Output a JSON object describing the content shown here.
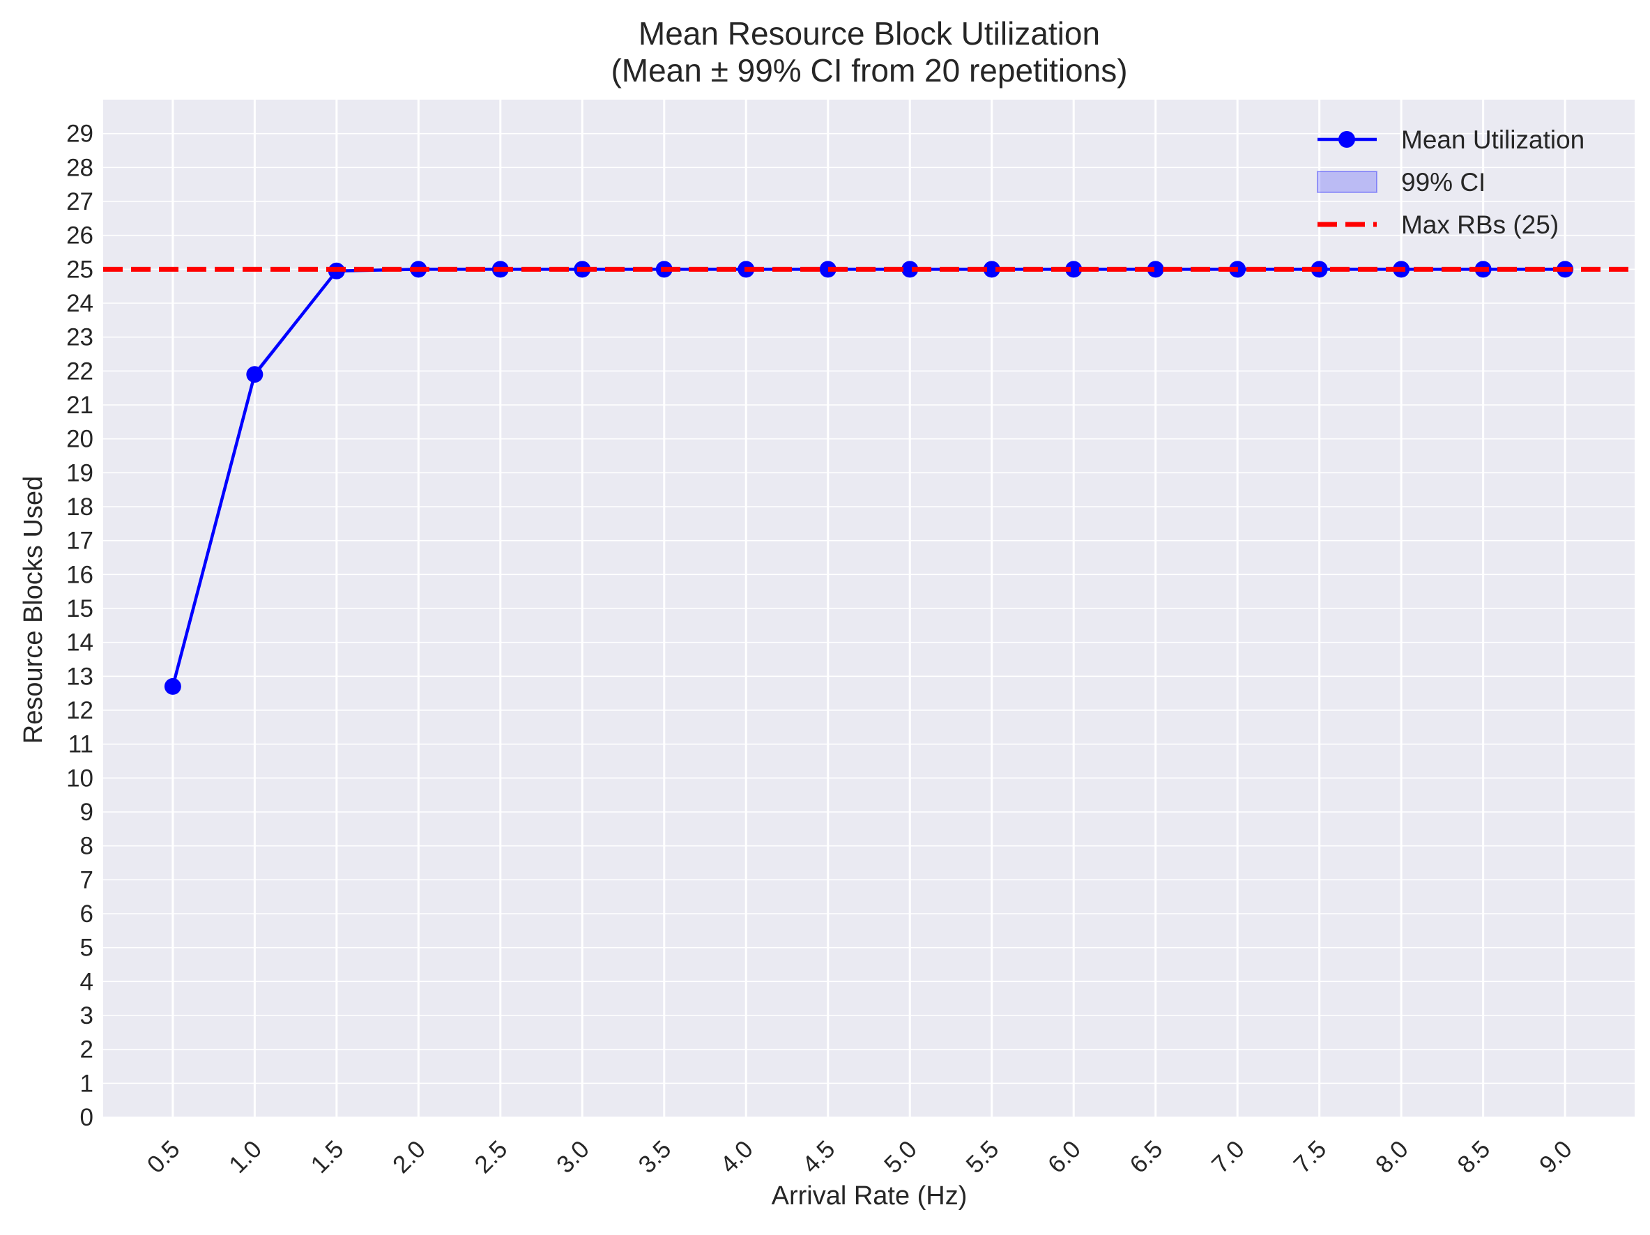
{
  "chart_data": {
    "type": "line",
    "title": "Mean Resource Block Utilization",
    "subtitle": "(Mean ± 99% CI from 20 repetitions)",
    "xlabel": "Arrival Rate (Hz)",
    "ylabel": "Resource Blocks Used",
    "x": [
      0.5,
      1.0,
      1.5,
      2.0,
      2.5,
      3.0,
      3.5,
      4.0,
      4.5,
      5.0,
      5.5,
      6.0,
      6.5,
      7.0,
      7.5,
      8.0,
      8.5,
      9.0
    ],
    "x_tick_labels": [
      "0.5",
      "1.0",
      "1.5",
      "2.0",
      "2.5",
      "3.0",
      "3.5",
      "4.0",
      "4.5",
      "5.0",
      "5.5",
      "6.0",
      "6.5",
      "7.0",
      "7.5",
      "8.0",
      "8.5",
      "9.0"
    ],
    "xlim": [
      0.075,
      9.425
    ],
    "ylim": [
      0,
      30
    ],
    "y_ticks": [
      0,
      1,
      2,
      3,
      4,
      5,
      6,
      7,
      8,
      9,
      10,
      11,
      12,
      13,
      14,
      15,
      16,
      17,
      18,
      19,
      20,
      21,
      22,
      23,
      24,
      25,
      26,
      27,
      28,
      29
    ],
    "grid": true,
    "legend_position": "top-right",
    "series": [
      {
        "name": "Mean Utilization",
        "color": "#0000ff",
        "marker": "circle",
        "values": [
          12.7,
          21.9,
          24.95,
          25.0,
          25.0,
          25.0,
          25.0,
          25.0,
          25.0,
          25.0,
          25.0,
          25.0,
          25.0,
          25.0,
          25.0,
          25.0,
          25.0,
          25.0
        ],
        "ci_lower": [
          12.6,
          21.8,
          24.9,
          25.0,
          25.0,
          25.0,
          25.0,
          25.0,
          25.0,
          25.0,
          25.0,
          25.0,
          25.0,
          25.0,
          25.0,
          25.0,
          25.0,
          25.0
        ],
        "ci_upper": [
          12.8,
          22.0,
          25.0,
          25.0,
          25.0,
          25.0,
          25.0,
          25.0,
          25.0,
          25.0,
          25.0,
          25.0,
          25.0,
          25.0,
          25.0,
          25.0,
          25.0,
          25.0
        ]
      }
    ],
    "reference_lines": [
      {
        "name": "Max RBs (25)",
        "y": 25,
        "color": "#ff0000",
        "style": "dashed"
      }
    ],
    "legend": [
      {
        "label": "Mean Utilization",
        "kind": "line-marker",
        "color": "#0000ff"
      },
      {
        "label": "99% CI",
        "kind": "patch",
        "color": "#0000ff"
      },
      {
        "label": "Max RBs (25)",
        "kind": "dashed-line",
        "color": "#ff0000"
      }
    ],
    "colors": {
      "plot_background": "#eaeaf2",
      "grid": "#ffffff",
      "text": "#262626"
    }
  }
}
